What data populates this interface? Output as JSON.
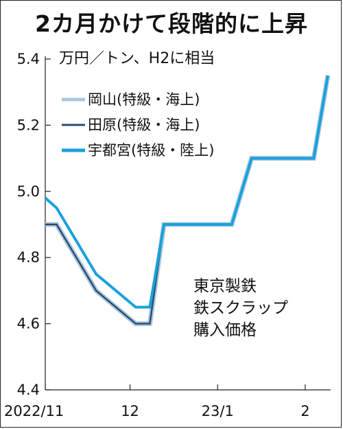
{
  "title": "2カ月かけて段階的に上昇",
  "unit_label": "万円／トン、H2に相当",
  "note_lines": [
    "東京製鉄",
    "鉄スクラップ",
    "購入価格"
  ],
  "colors": {
    "okayama": "#a8c8de",
    "tahara": "#2c4a6e",
    "utsunomiya": "#1aa0dc"
  },
  "chart_data": {
    "type": "line",
    "title": "2カ月かけて段階的に上昇",
    "ylabel": "万円／トン、H2に相当",
    "ylim": [
      4.4,
      5.4
    ],
    "yticks": [
      "5.4",
      "5.2",
      "5.0",
      "4.8",
      "4.6",
      "4.4"
    ],
    "xticks": [
      {
        "label": "2022/11",
        "x": 0
      },
      {
        "label": "12",
        "x": 30
      },
      {
        "label": "23/1",
        "x": 61
      },
      {
        "label": "2",
        "x": 92
      }
    ],
    "xlim": [
      0,
      101
    ],
    "legend_position": "top-left",
    "grid": false,
    "series": [
      {
        "name": "岡山(特級・海上)",
        "color_key": "okayama",
        "points": [
          [
            0,
            4.9
          ],
          [
            4,
            4.9
          ],
          [
            18,
            4.7
          ],
          [
            32,
            4.6
          ],
          [
            37,
            4.6
          ],
          [
            42,
            4.9
          ],
          [
            66,
            4.9
          ],
          [
            73,
            5.1
          ],
          [
            95,
            5.1
          ],
          [
            100,
            5.35
          ]
        ]
      },
      {
        "name": "田原(特級・海上)",
        "color_key": "tahara",
        "points": [
          [
            0,
            4.9
          ],
          [
            4,
            4.9
          ],
          [
            18,
            4.7
          ],
          [
            32,
            4.6
          ],
          [
            37,
            4.6
          ],
          [
            42,
            4.9
          ],
          [
            66,
            4.9
          ],
          [
            73,
            5.1
          ],
          [
            95,
            5.1
          ],
          [
            100,
            5.35
          ]
        ]
      },
      {
        "name": "宇都宮(特級・陸上)",
        "color_key": "utsunomiya",
        "points": [
          [
            0,
            4.98
          ],
          [
            4,
            4.95
          ],
          [
            18,
            4.75
          ],
          [
            32,
            4.65
          ],
          [
            37,
            4.65
          ],
          [
            42,
            4.9
          ],
          [
            66,
            4.9
          ],
          [
            73,
            5.1
          ],
          [
            95,
            5.1
          ],
          [
            100,
            5.35
          ]
        ]
      }
    ]
  }
}
